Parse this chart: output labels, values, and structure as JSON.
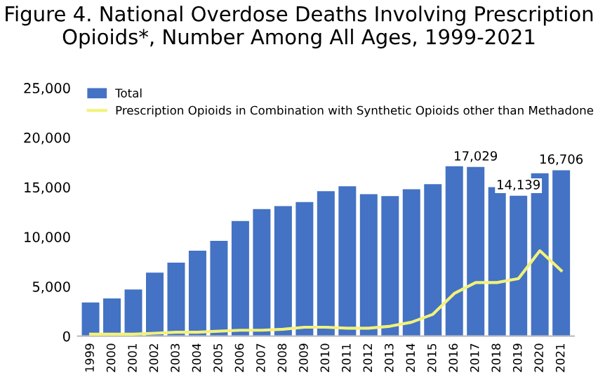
{
  "chart_data": {
    "type": "bar",
    "title": "Figure 4. National Overdose Deaths Involving Prescription Opioids*, Number Among All Ages, 1999-2021",
    "categories": [
      "1999",
      "2000",
      "2001",
      "2002",
      "2003",
      "2004",
      "2005",
      "2006",
      "2007",
      "2008",
      "2009",
      "2010",
      "2011",
      "2012",
      "2013",
      "2014",
      "2015",
      "2016",
      "2017",
      "2018",
      "2019",
      "2020",
      "2021"
    ],
    "series": [
      {
        "name": "Total",
        "color": "#4472c4",
        "values": [
          3400,
          3800,
          4700,
          6400,
          7400,
          8600,
          9600,
          11600,
          12800,
          13100,
          13500,
          14600,
          15100,
          14300,
          14100,
          14800,
          15300,
          17100,
          17029,
          15000,
          14139,
          16400,
          16706
        ],
        "value_labels": [
          null,
          null,
          null,
          null,
          null,
          null,
          null,
          null,
          null,
          null,
          null,
          null,
          null,
          null,
          null,
          null,
          null,
          null,
          "17,029",
          null,
          "14,139",
          null,
          "16,706"
        ]
      },
      {
        "name": "Prescription Opioids in Combination with Synthetic Opioids other than Methadone",
        "type": "line",
        "color": "#f2f27a",
        "values": [
          200,
          200,
          200,
          300,
          400,
          400,
          500,
          600,
          600,
          700,
          900,
          900,
          800,
          800,
          1000,
          1400,
          2200,
          4300,
          5400,
          5400,
          5800,
          8600,
          6600
        ]
      }
    ],
    "ylim": [
      0,
      25000
    ],
    "yticks": [
      {
        "value": 0,
        "label": "0"
      },
      {
        "value": 5000,
        "label": "5,000"
      },
      {
        "value": 10000,
        "label": "10,000"
      },
      {
        "value": 15000,
        "label": "15,000"
      },
      {
        "value": 20000,
        "label": "20,000"
      },
      {
        "value": 25000,
        "label": "25,000"
      }
    ],
    "grid": false,
    "legend": "top left"
  }
}
